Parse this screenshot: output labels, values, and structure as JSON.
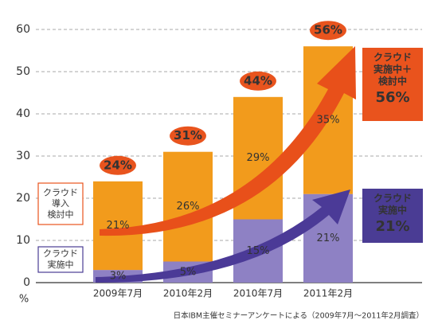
{
  "chart_data": {
    "type": "stacked_bar",
    "categories": [
      "2009年7月",
      "2010年2月",
      "2010年7月",
      "2011年2月"
    ],
    "series": [
      {
        "name": "クラウド\n実施中",
        "color": "#8e81c4",
        "border": "#4a3c94",
        "values": [
          3,
          5,
          15,
          21
        ],
        "value_labels": [
          "3%",
          "5%",
          "15%",
          "21%"
        ]
      },
      {
        "name": "クラウド\n導入\n検討中",
        "color": "#f29b1c",
        "border": "#e9531d",
        "values": [
          21,
          26,
          29,
          35
        ],
        "value_labels": [
          "21%",
          "26%",
          "29%",
          "35%"
        ]
      }
    ],
    "totals": [
      24,
      31,
      44,
      56
    ],
    "total_labels": [
      "24%",
      "31%",
      "44%",
      "56%"
    ],
    "total_color": "#e8541e",
    "ylim": [
      0,
      60
    ],
    "yticks": [
      0,
      10,
      20,
      30,
      40,
      50,
      60
    ],
    "grid": true,
    "y_unit": "%",
    "annotations": [
      {
        "text": "クラウド\n実施中＋\n検討中",
        "value": 56,
        "value_label": "56%",
        "color": "#e9531d"
      },
      {
        "text": "クラウド\n実施中",
        "value": 21,
        "value_label": "21%",
        "color": "#4a3c94"
      }
    ],
    "source": "日本IBM主催セミナーアンケートによる（2009年7月～2011年2月調査）"
  }
}
